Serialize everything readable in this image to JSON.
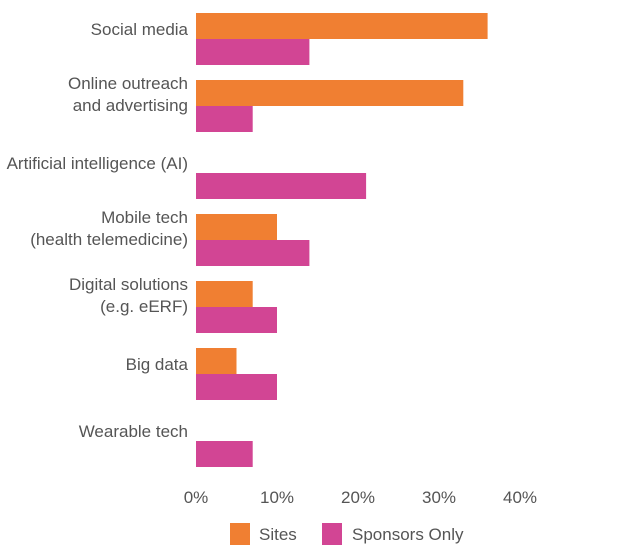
{
  "chart_data": {
    "type": "bar",
    "orientation": "horizontal",
    "categories": [
      [
        "Social media"
      ],
      [
        "Online outreach",
        "and advertising"
      ],
      [
        "Artificial intelligence (AI)"
      ],
      [
        "Mobile tech",
        "(health telemedicine)"
      ],
      [
        "Digital solutions",
        "(e.g. eERF)"
      ],
      [
        "Big data"
      ],
      [
        "Wearable tech"
      ]
    ],
    "series": [
      {
        "name": "Sites",
        "color": "#f07f32",
        "values": [
          36,
          33,
          0,
          10,
          7,
          5,
          0
        ]
      },
      {
        "name": "Sponsors Only",
        "color": "#d24594",
        "values": [
          14,
          7,
          21,
          14,
          10,
          10,
          7
        ]
      }
    ],
    "xlim": [
      0,
      40
    ],
    "xticks": [
      "0%",
      "10%",
      "20%",
      "30%",
      "40%"
    ],
    "grid": false,
    "legend_position": "bottom"
  }
}
